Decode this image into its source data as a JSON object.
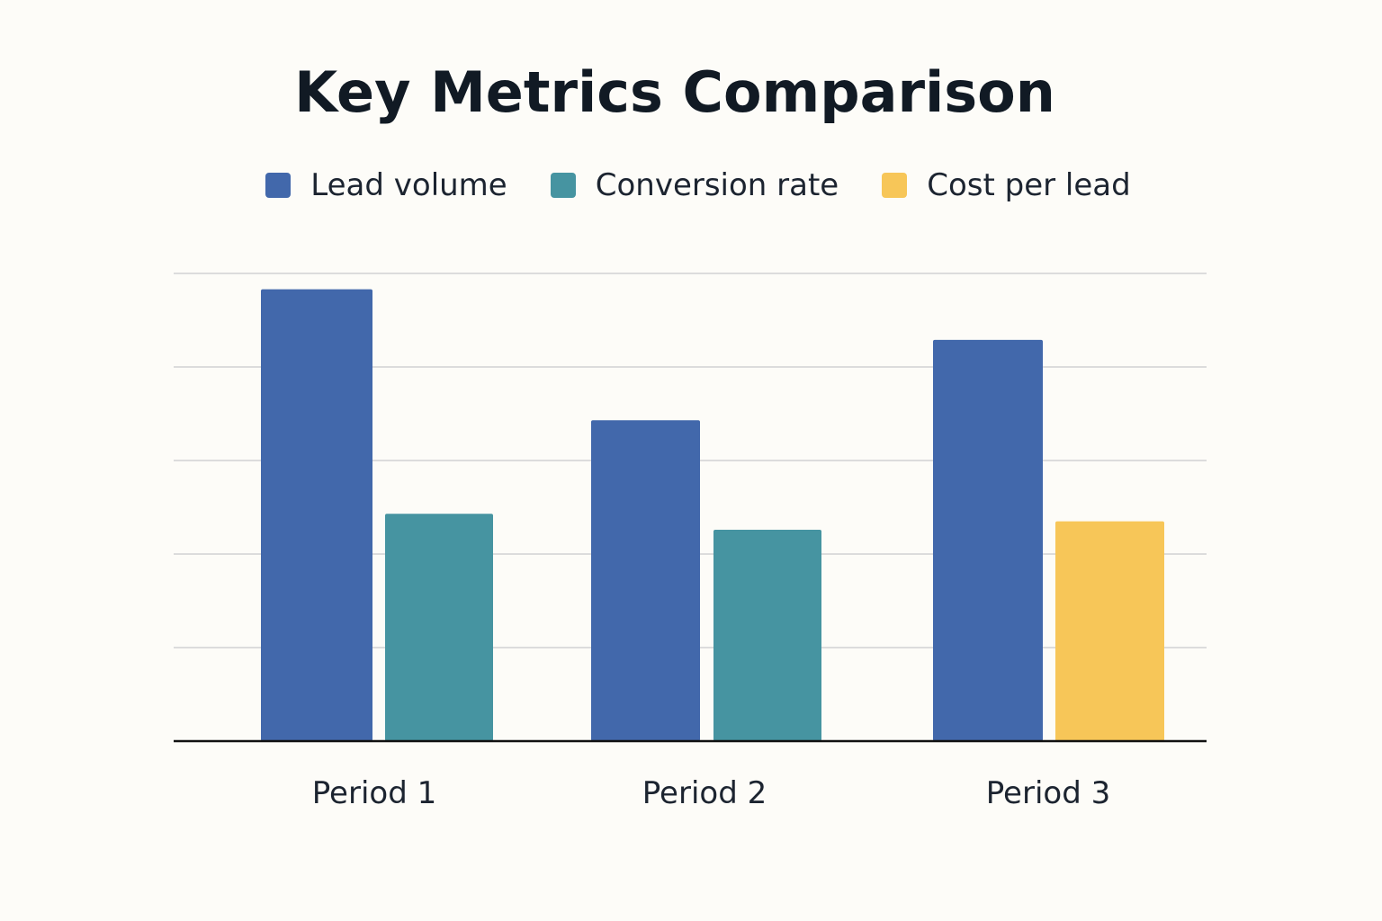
{
  "chart_data": {
    "type": "bar",
    "title": "Key Metrics Comparison",
    "xlabel": "",
    "ylabel": "",
    "ylim": [
      0,
      5
    ],
    "grid": true,
    "legend_position": "top-center",
    "categories": [
      "Period 1",
      "Period 2",
      "Period 3"
    ],
    "series": [
      {
        "name": "Lead volume",
        "color": "#4268ab",
        "values": [
          4.83,
          3.43,
          4.29
        ]
      },
      {
        "name": "Conversion rate",
        "color": "#4694a1",
        "values": [
          2.43,
          2.26,
          null
        ]
      },
      {
        "name": "Cost per lead",
        "color": "#f7c658",
        "values": [
          null,
          null,
          2.35
        ]
      }
    ]
  }
}
